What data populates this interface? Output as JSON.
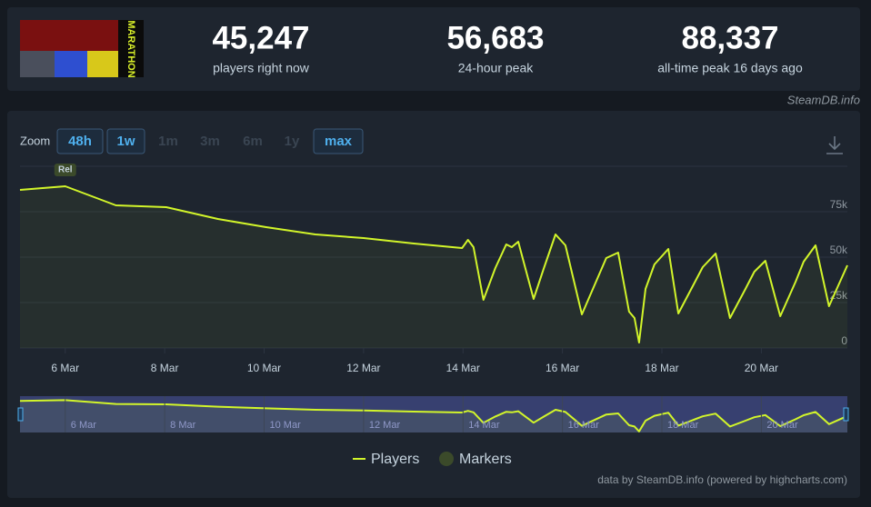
{
  "header": {
    "game_logo": "MARATHON",
    "stats": [
      {
        "value": "45,247",
        "label": "players right now"
      },
      {
        "value": "56,683",
        "label": "24-hour peak"
      },
      {
        "value": "88,337",
        "label": "all-time peak 16 days ago"
      }
    ],
    "source": "SteamDB.info"
  },
  "controls": {
    "zoom_label": "Zoom",
    "zoom_buttons": [
      {
        "label": "48h",
        "enabled": true
      },
      {
        "label": "1w",
        "enabled": true
      },
      {
        "label": "1m",
        "enabled": false
      },
      {
        "label": "3m",
        "enabled": false
      },
      {
        "label": "6m",
        "enabled": false
      },
      {
        "label": "1y",
        "enabled": false
      },
      {
        "label": "max",
        "enabled": true
      }
    ]
  },
  "chart_data": {
    "type": "line",
    "x": [
      5.09,
      6,
      7.02,
      8.03,
      9.07,
      10.04,
      11.03,
      12.0,
      13.01,
      13.98,
      14.1,
      14.21,
      14.41,
      14.65,
      14.87,
      14.98,
      15.11,
      15.42,
      15.62,
      15.86,
      16.06,
      16.39,
      16.66,
      16.88,
      17.12,
      17.34,
      17.45,
      17.54,
      17.67,
      17.85,
      18.13,
      18.33,
      18.62,
      18.82,
      19.08,
      19.37,
      19.68,
      19.86,
      20.08,
      20.38,
      20.69,
      20.85,
      21.09,
      21.36,
      21.73
    ],
    "series": [
      {
        "name": "Players",
        "color": "#d2f52a",
        "values": [
          87000,
          89000,
          78500,
          77500,
          71000,
          66500,
          62500,
          60500,
          57500,
          55000,
          59500,
          55500,
          26500,
          44000,
          57000,
          55500,
          58500,
          27000,
          43500,
          62500,
          56500,
          18500,
          35500,
          49500,
          52500,
          20000,
          16500,
          3000,
          32500,
          46000,
          54500,
          19000,
          34000,
          44500,
          52000,
          16500,
          32500,
          42000,
          48000,
          17500,
          36500,
          47500,
          56500,
          23000,
          45500
        ]
      }
    ],
    "markers": {
      "name": "Markers",
      "color": "#3b4a2a",
      "x": [
        6
      ],
      "labels": [
        "Rel"
      ]
    },
    "xlim": [
      5.09,
      21.73
    ],
    "xticks": [
      {
        "value": 6,
        "label": "6 Mar"
      },
      {
        "value": 8,
        "label": "8 Mar"
      },
      {
        "value": 10,
        "label": "10 Mar"
      },
      {
        "value": 12,
        "label": "12 Mar"
      },
      {
        "value": 14,
        "label": "14 Mar"
      },
      {
        "value": 16,
        "label": "16 Mar"
      },
      {
        "value": 18,
        "label": "18 Mar"
      },
      {
        "value": 20,
        "label": "20 Mar"
      }
    ],
    "ylim": [
      0,
      100000
    ],
    "yticks": [
      0,
      {
        "value": 25000,
        "label": "25k"
      },
      {
        "value": 50000,
        "label": "50k"
      },
      {
        "value": 75000,
        "label": "75k"
      }
    ],
    "grid": true,
    "credits": "data by SteamDB.info (powered by highcharts.com)"
  }
}
